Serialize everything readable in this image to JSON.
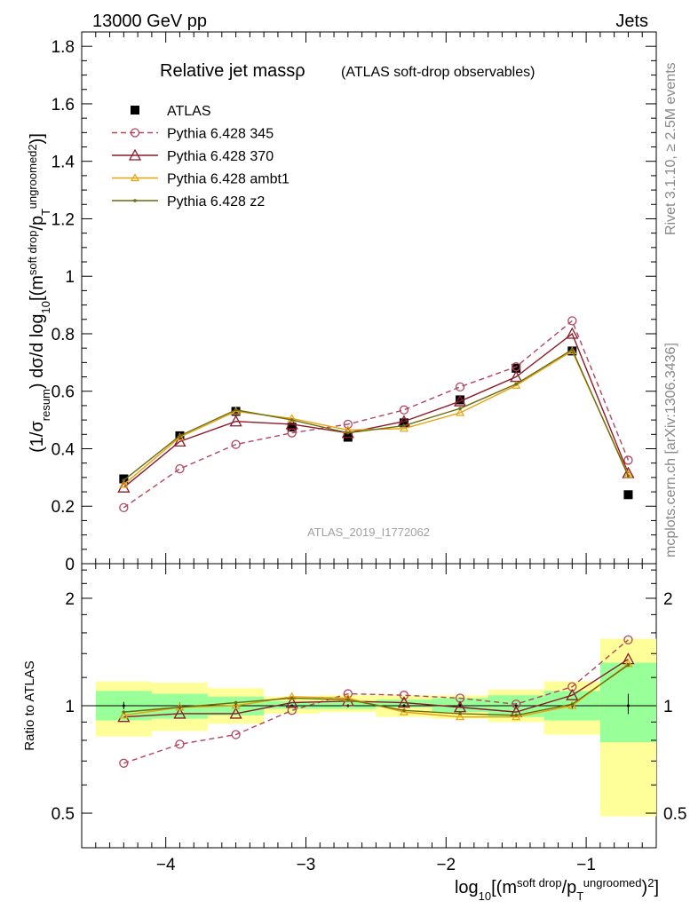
{
  "header": {
    "energy": "13000 GeV pp",
    "category": "Jets",
    "rivet": "Rivet 3.1.10, ≥ 2.5M events",
    "mcplots": "mcplots.cern.ch [arXiv:1306.3436]",
    "analysis_id": "ATLAS_2019_I1772062"
  },
  "chart_data": [
    {
      "type": "line",
      "title": "Relative jet massρ",
      "subtitle": "(ATLAS soft-drop observables)",
      "xlabel": "log10[(m^soft drop/pT^ungroomed)^2]",
      "ylabel": "(1/σresum) dσ/d log10[(m^soft drop/pT^ungroomed)^2]",
      "xlim": [
        -4.6,
        -0.5
      ],
      "ylim": [
        0,
        1.85
      ],
      "x_ticks": [
        "−4",
        "−3",
        "−2",
        "−1"
      ],
      "y_ticks": [
        "0",
        "0.2",
        "0.4",
        "0.6",
        "0.8",
        "1",
        "1.2",
        "1.4",
        "1.6",
        "1.8"
      ],
      "legend_position": "top-left",
      "x": [
        -4.3,
        -3.9,
        -3.5,
        -3.1,
        -2.7,
        -2.3,
        -1.9,
        -1.5,
        -1.1,
        -0.7
      ],
      "series": [
        {
          "name": "ATLAS",
          "color": "#000000",
          "marker": "filled-square",
          "style": "none",
          "values": [
            0.295,
            0.445,
            0.53,
            0.475,
            0.44,
            0.49,
            0.57,
            0.68,
            0.74,
            0.24
          ]
        },
        {
          "name": "Pythia 6.428 345",
          "color": "#b2455e",
          "marker": "open-circle",
          "style": "dashed",
          "values": [
            0.195,
            0.33,
            0.415,
            0.455,
            0.485,
            0.535,
            0.615,
            0.685,
            0.845,
            0.36
          ]
        },
        {
          "name": "Pythia 6.428 370",
          "color": "#8b1a2a",
          "marker": "open-triangle",
          "style": "solid",
          "values": [
            0.265,
            0.425,
            0.495,
            0.485,
            0.455,
            0.495,
            0.565,
            0.65,
            0.8,
            0.315
          ]
        },
        {
          "name": "Pythia 6.428 ambt1",
          "color": "#e8a20c",
          "marker": "small-open-triangle",
          "style": "solid",
          "values": [
            0.275,
            0.44,
            0.53,
            0.505,
            0.465,
            0.47,
            0.525,
            0.62,
            0.74,
            0.31
          ]
        },
        {
          "name": "Pythia 6.428 z2",
          "color": "#6b6b10",
          "marker": "dot",
          "style": "solid",
          "values": [
            0.29,
            0.445,
            0.535,
            0.5,
            0.455,
            0.48,
            0.54,
            0.625,
            0.745,
            0.305
          ]
        }
      ]
    },
    {
      "type": "line",
      "ylabel": "Ratio to ATLAS",
      "scale": "log",
      "ylim": [
        0.4,
        2.5
      ],
      "y_ticks": [
        "0.5",
        "1",
        "2"
      ],
      "x": [
        -4.3,
        -3.9,
        -3.5,
        -3.1,
        -2.7,
        -2.3,
        -1.9,
        -1.5,
        -1.1,
        -0.7
      ],
      "bin_edges": [
        -4.5,
        -4.1,
        -3.7,
        -3.3,
        -2.9,
        -2.5,
        -2.1,
        -1.7,
        -1.3,
        -0.9,
        -0.5
      ],
      "bands": {
        "inner_color": "#99ff99",
        "outer_color": "#ffff99",
        "inner_low": [
          0.91,
          0.92,
          0.94,
          0.98,
          0.98,
          0.99,
          0.96,
          0.93,
          0.91,
          0.79
        ],
        "inner_high": [
          1.1,
          1.08,
          1.06,
          1.03,
          1.03,
          1.04,
          1.05,
          1.07,
          1.1,
          1.32
        ],
        "outer_low": [
          0.82,
          0.85,
          0.89,
          0.95,
          0.96,
          0.93,
          0.92,
          0.9,
          0.83,
          0.49
        ],
        "outer_high": [
          1.17,
          1.16,
          1.12,
          1.06,
          1.07,
          1.07,
          1.07,
          1.11,
          1.17,
          1.54
        ]
      },
      "series": [
        {
          "name": "Pythia 6.428 345",
          "values": [
            0.69,
            0.78,
            0.83,
            0.97,
            1.08,
            1.07,
            1.05,
            1.01,
            1.13,
            1.53
          ]
        },
        {
          "name": "Pythia 6.428 370",
          "values": [
            0.93,
            0.95,
            0.95,
            1.02,
            1.03,
            1.02,
            0.99,
            0.96,
            1.07,
            1.35
          ]
        },
        {
          "name": "Pythia 6.428 ambt1",
          "values": [
            0.94,
            0.99,
            1.0,
            1.06,
            1.05,
            0.96,
            0.93,
            0.93,
            1.0,
            1.31
          ]
        },
        {
          "name": "Pythia 6.428 z2",
          "values": [
            0.96,
            0.99,
            1.02,
            1.05,
            1.04,
            0.97,
            0.95,
            0.94,
            1.01,
            1.3
          ]
        }
      ]
    }
  ]
}
